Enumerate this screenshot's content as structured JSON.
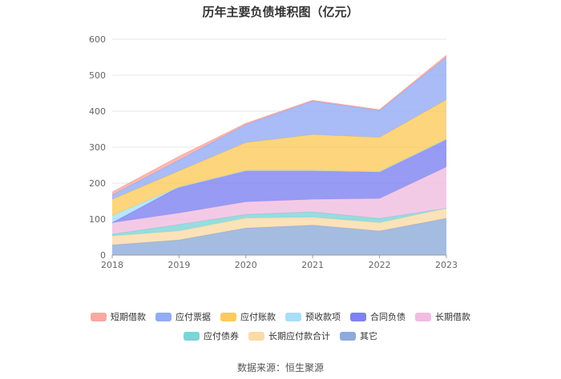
{
  "chart_data": {
    "type": "area",
    "stacked": true,
    "title": "历年主要负债堆积图（亿元）",
    "categories": [
      "2018",
      "2019",
      "2020",
      "2021",
      "2022",
      "2023"
    ],
    "ylim": [
      0,
      600
    ],
    "yticks": [
      0,
      100,
      200,
      300,
      400,
      500,
      600
    ],
    "legend_position": "bottom",
    "series": [
      {
        "name": "其它",
        "color": "#8eabd9",
        "values": [
          28,
          42,
          75,
          83,
          67,
          102
        ]
      },
      {
        "name": "长期应付款合计",
        "color": "#fbdba6",
        "values": [
          25,
          25,
          28,
          22,
          23,
          28
        ]
      },
      {
        "name": "应付债券",
        "color": "#7ed3d7",
        "values": [
          5,
          18,
          10,
          15,
          12,
          0
        ]
      },
      {
        "name": "长期借款",
        "color": "#f0bde0",
        "values": [
          32,
          32,
          35,
          35,
          55,
          115
        ]
      },
      {
        "name": "合同负债",
        "color": "#7d82f0",
        "values": [
          0,
          72,
          87,
          80,
          75,
          77
        ]
      },
      {
        "name": "预收款项",
        "color": "#a9def9",
        "values": [
          20,
          0,
          0,
          0,
          0,
          0
        ]
      },
      {
        "name": "应付账款",
        "color": "#fdca5c",
        "values": [
          45,
          45,
          78,
          100,
          95,
          110
        ]
      },
      {
        "name": "应付票据",
        "color": "#94abf5",
        "values": [
          12,
          30,
          50,
          93,
          75,
          118
        ]
      },
      {
        "name": "短期借款",
        "color": "#f8a9a2",
        "values": [
          8,
          10,
          3,
          2,
          2,
          5
        ]
      }
    ]
  },
  "source": "数据来源：恒生聚源"
}
